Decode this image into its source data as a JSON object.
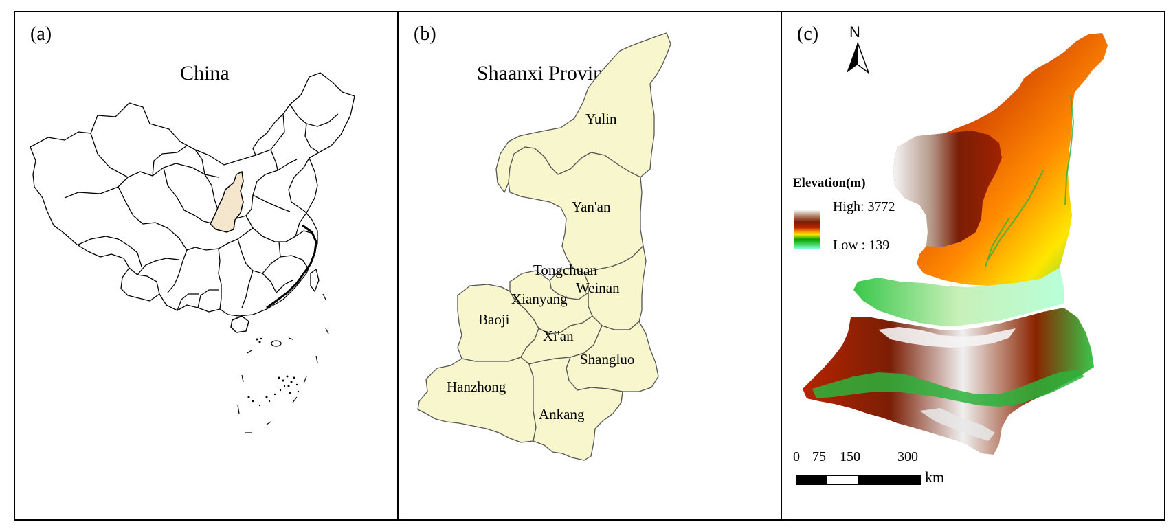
{
  "panels": {
    "a": {
      "letter": "(a)",
      "title": "China",
      "highlight_color": "#f3e6cc",
      "highlighted_region": "Shaanxi"
    },
    "b": {
      "letter": "(b)",
      "title": "Shaanxi Province",
      "fill_color": "#f7f6cd",
      "cities": [
        "Yulin",
        "Yan'an",
        "Tongchuan",
        "Weinan",
        "Xianyang",
        "Baoji",
        "Xi'an",
        "Shangluo",
        "Hanzhong",
        "Ankang"
      ]
    },
    "c": {
      "letter": "(c)",
      "north": "N",
      "legend": {
        "title": "Elevation(m)",
        "high": "High: 3772",
        "low": "Low : 139"
      },
      "scale": {
        "ticks": [
          "0",
          "75",
          "150",
          "300"
        ],
        "unit": "km"
      },
      "colors": {
        "high": "#f2f2f2",
        "brown": "#7a1e05",
        "red": "#b52400",
        "orange": "#ff8a00",
        "yellow": "#ffe600",
        "green": "#00a000",
        "low": "#80ffd8"
      }
    }
  }
}
